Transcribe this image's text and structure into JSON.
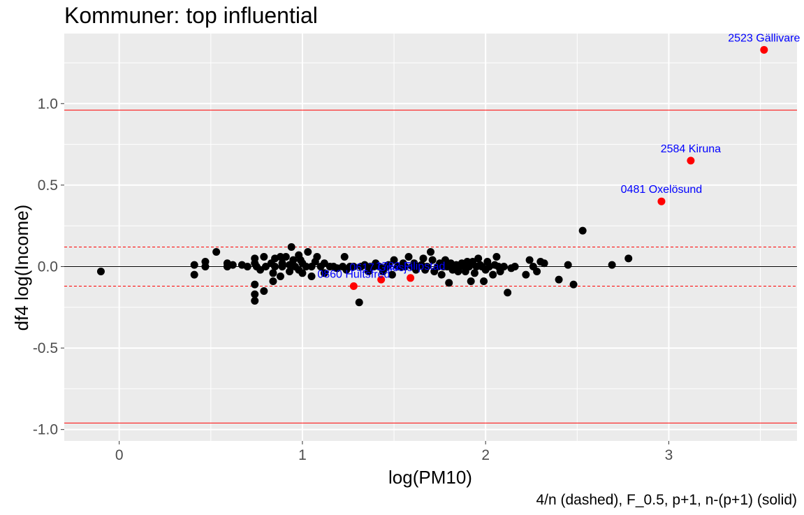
{
  "chart_data": {
    "type": "scatter",
    "title": "Kommuner: top influential",
    "xlabel": "log(PM10)",
    "ylabel": "df4 log(Income)",
    "caption": "4/n (dashed), F_0.5, p+1, n-(p+1) (solid)",
    "xlim": [
      -0.3,
      3.7
    ],
    "ylim": [
      -1.07,
      1.43
    ],
    "x_ticks": [
      0,
      1,
      2,
      3
    ],
    "x_tick_labels": [
      "0",
      "1",
      "2",
      "3"
    ],
    "y_ticks": [
      -1.0,
      -0.5,
      0.0,
      0.5,
      1.0
    ],
    "y_tick_labels": [
      "-1.0",
      "-0.5",
      "0.0",
      "0.5",
      "1.0"
    ],
    "grid": true,
    "legend": "none",
    "colors": {
      "panel": "#EBEBEB",
      "grid": "#FFFFFF",
      "point": "#000000",
      "highlight": "#FF0000",
      "label": "#0000FF",
      "threshold": "#FF0000",
      "zero_line": "#000000"
    },
    "reference_lines": {
      "zero": 0.0,
      "dashed": [
        0.12,
        -0.12
      ],
      "solid": [
        0.96,
        -0.96
      ]
    },
    "highlighted": [
      {
        "x": 3.52,
        "y": 1.33,
        "label": "2523 Gällivare"
      },
      {
        "x": 3.12,
        "y": 0.65,
        "label": "2584 Kiruna"
      },
      {
        "x": 2.96,
        "y": 0.4,
        "label": "0481 Oxelösund"
      },
      {
        "x": 1.28,
        "y": -0.12,
        "label": "0860 Hultsfred"
      },
      {
        "x": 1.43,
        "y": -0.08,
        "label": "0617 Gnosjö"
      },
      {
        "x": 1.59,
        "y": -0.07,
        "label": "1782 Filipstad"
      }
    ],
    "points": [
      [
        -0.1,
        -0.03
      ],
      [
        0.41,
        0.01
      ],
      [
        0.41,
        -0.05
      ],
      [
        0.47,
        0.03
      ],
      [
        0.47,
        0.0
      ],
      [
        0.53,
        0.09
      ],
      [
        0.59,
        0.02
      ],
      [
        0.59,
        0.0
      ],
      [
        0.62,
        0.01
      ],
      [
        0.67,
        0.01
      ],
      [
        0.7,
        0.0
      ],
      [
        0.74,
        -0.11
      ],
      [
        0.74,
        -0.17
      ],
      [
        0.74,
        -0.21
      ],
      [
        0.74,
        0.05
      ],
      [
        0.74,
        0.02
      ],
      [
        0.75,
        0.0
      ],
      [
        0.77,
        -0.02
      ],
      [
        0.79,
        -0.15
      ],
      [
        0.79,
        0.06
      ],
      [
        0.8,
        0.0
      ],
      [
        0.83,
        0.02
      ],
      [
        0.84,
        -0.04
      ],
      [
        0.84,
        -0.09
      ],
      [
        0.85,
        0.05
      ],
      [
        0.85,
        0.0
      ],
      [
        0.88,
        0.06
      ],
      [
        0.88,
        -0.06
      ],
      [
        0.89,
        0.0
      ],
      [
        0.89,
        0.02
      ],
      [
        0.91,
        0.06
      ],
      [
        0.93,
        0.01
      ],
      [
        0.93,
        -0.03
      ],
      [
        0.94,
        0.12
      ],
      [
        0.95,
        0.04
      ],
      [
        0.96,
        0.0
      ],
      [
        0.98,
        0.07
      ],
      [
        0.98,
        -0.02
      ],
      [
        0.99,
        0.04
      ],
      [
        1.0,
        0.02
      ],
      [
        1.0,
        -0.04
      ],
      [
        1.02,
        0.0
      ],
      [
        1.03,
        0.09
      ],
      [
        1.05,
        -0.06
      ],
      [
        1.05,
        0.0
      ],
      [
        1.07,
        0.03
      ],
      [
        1.08,
        0.06
      ],
      [
        1.1,
        0.0
      ],
      [
        1.12,
        0.02
      ],
      [
        1.12,
        -0.04
      ],
      [
        1.15,
        0.0
      ],
      [
        1.17,
        0.0
      ],
      [
        1.19,
        -0.01
      ],
      [
        1.22,
        0.0
      ],
      [
        1.23,
        0.06
      ],
      [
        1.24,
        -0.02
      ],
      [
        1.26,
        0.0
      ],
      [
        1.28,
        0.0
      ],
      [
        1.31,
        -0.22
      ],
      [
        1.32,
        0.0
      ],
      [
        1.34,
        0.01
      ],
      [
        1.36,
        -0.03
      ],
      [
        1.37,
        0.0
      ],
      [
        1.39,
        0.0
      ],
      [
        1.4,
        0.02
      ],
      [
        1.42,
        0.0
      ],
      [
        1.44,
        -0.03
      ],
      [
        1.46,
        0.0
      ],
      [
        1.47,
        0.01
      ],
      [
        1.49,
        -0.05
      ],
      [
        1.5,
        0.04
      ],
      [
        1.52,
        0.0
      ],
      [
        1.54,
        0.0
      ],
      [
        1.55,
        0.02
      ],
      [
        1.56,
        0.0
      ],
      [
        1.58,
        0.06
      ],
      [
        1.6,
        0.0
      ],
      [
        1.61,
        0.02
      ],
      [
        1.62,
        -0.02
      ],
      [
        1.63,
        0.0
      ],
      [
        1.65,
        0.01
      ],
      [
        1.66,
        0.05
      ],
      [
        1.67,
        -0.02
      ],
      [
        1.68,
        0.0
      ],
      [
        1.7,
        0.09
      ],
      [
        1.71,
        0.04
      ],
      [
        1.72,
        -0.03
      ],
      [
        1.74,
        0.0
      ],
      [
        1.75,
        0.02
      ],
      [
        1.76,
        -0.05
      ],
      [
        1.77,
        0.0
      ],
      [
        1.78,
        0.04
      ],
      [
        1.79,
        0.0
      ],
      [
        1.8,
        -0.1
      ],
      [
        1.81,
        0.02
      ],
      [
        1.82,
        -0.02
      ],
      [
        1.83,
        0.0
      ],
      [
        1.84,
        0.01
      ],
      [
        1.85,
        -0.03
      ],
      [
        1.86,
        0.0
      ],
      [
        1.87,
        0.02
      ],
      [
        1.88,
        0.01
      ],
      [
        1.89,
        -0.03
      ],
      [
        1.9,
        0.03
      ],
      [
        1.91,
        0.0
      ],
      [
        1.92,
        -0.09
      ],
      [
        1.93,
        0.03
      ],
      [
        1.94,
        -0.04
      ],
      [
        1.95,
        0.0
      ],
      [
        1.96,
        0.05
      ],
      [
        1.97,
        0.01
      ],
      [
        1.98,
        0.0
      ],
      [
        1.99,
        -0.09
      ],
      [
        2.0,
        -0.02
      ],
      [
        2.01,
        0.03
      ],
      [
        2.02,
        0.0
      ],
      [
        2.04,
        -0.05
      ],
      [
        2.05,
        0.01
      ],
      [
        2.06,
        0.06
      ],
      [
        2.07,
        0.0
      ],
      [
        2.08,
        -0.03
      ],
      [
        2.1,
        0.0
      ],
      [
        2.12,
        -0.16
      ],
      [
        2.14,
        -0.01
      ],
      [
        2.16,
        0.0
      ],
      [
        2.22,
        -0.05
      ],
      [
        2.24,
        0.04
      ],
      [
        2.26,
        0.0
      ],
      [
        2.28,
        -0.03
      ],
      [
        2.3,
        0.03
      ],
      [
        2.32,
        0.02
      ],
      [
        2.4,
        -0.08
      ],
      [
        2.45,
        0.01
      ],
      [
        2.48,
        -0.11
      ],
      [
        2.53,
        0.22
      ],
      [
        2.69,
        0.01
      ],
      [
        2.78,
        0.05
      ]
    ]
  }
}
